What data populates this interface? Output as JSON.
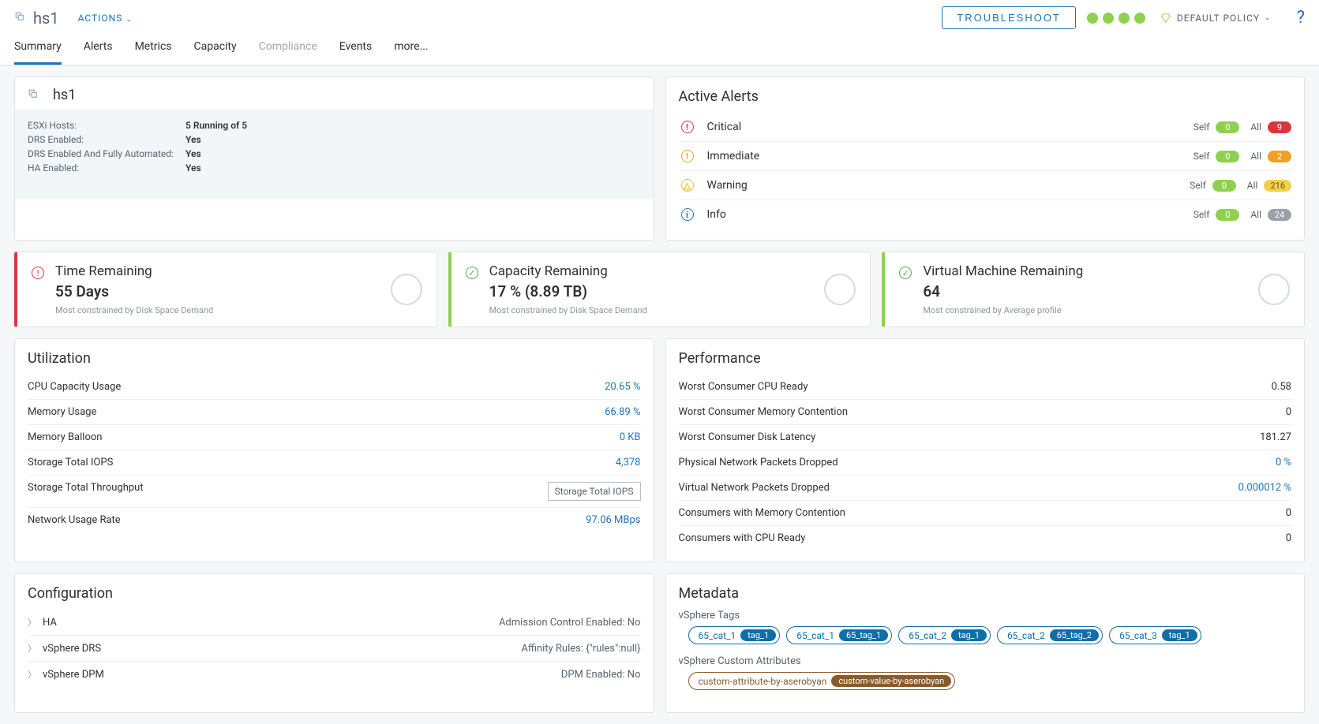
{
  "header": {
    "name": "hs1",
    "actions": "ACTIONS",
    "troubleshoot": "TROUBLESHOOT",
    "badge_colors": [
      "#8fd14f",
      "#8fd14f",
      "#8fd14f",
      "#8fd14f"
    ],
    "policy_label": "DEFAULT POLICY"
  },
  "tabs": [
    "Summary",
    "Alerts",
    "Metrics",
    "Capacity",
    "Compliance",
    "Events",
    "more..."
  ],
  "cluster": {
    "title": "hs1",
    "props": [
      {
        "k": "ESXi Hosts:",
        "v": "5 Running of 5"
      },
      {
        "k": "DRS Enabled:",
        "v": "Yes"
      },
      {
        "k": "DRS Enabled And Fully Automated:",
        "v": "Yes"
      },
      {
        "k": "HA Enabled:",
        "v": "Yes"
      }
    ]
  },
  "alerts": {
    "title": "Active Alerts",
    "rows": [
      {
        "name": "Critical",
        "icon": "!",
        "color": "#d9363f",
        "self": "0",
        "all": "9",
        "all_class": "red"
      },
      {
        "name": "Immediate",
        "icon": "!",
        "color": "#f0a020",
        "self": "0",
        "all": "2",
        "all_class": "org"
      },
      {
        "name": "Warning",
        "icon": "△",
        "color": "#f0c020",
        "self": "0",
        "all": "216",
        "all_class": "yel"
      },
      {
        "name": "Info",
        "icon": "i",
        "color": "#1b75bb",
        "self": "0",
        "all": "24",
        "all_class": "gry"
      }
    ]
  },
  "kpis": [
    {
      "title": "Time Remaining",
      "value": "55 Days",
      "sub": "Most constrained by Disk Space Demand",
      "class": "red",
      "icon_color": "#d9363f"
    },
    {
      "title": "Capacity Remaining",
      "value": "17 % (8.89 TB)",
      "sub": "Most constrained by Disk Space Demand",
      "class": "grn",
      "icon_color": "#4fb04f"
    },
    {
      "title": "Virtual Machine Remaining",
      "value": "64",
      "sub": "Most constrained by Average profile",
      "class": "grn",
      "icon_color": "#4fb04f"
    }
  ],
  "utilization": {
    "title": "Utilization",
    "rows": [
      {
        "k": "CPU Capacity Usage",
        "v": "20.65 %"
      },
      {
        "k": "Memory Usage",
        "v": "66.89 %"
      },
      {
        "k": "Memory Balloon",
        "v": "0 KB"
      },
      {
        "k": "Storage Total IOPS",
        "v": "4,378"
      },
      {
        "k": "Storage Total Throughput",
        "v": "",
        "tooltip": "Storage Total IOPS"
      },
      {
        "k": "Network Usage Rate",
        "v": "97.06 MBps"
      }
    ]
  },
  "performance": {
    "title": "Performance",
    "rows": [
      {
        "k": "Worst Consumer CPU Ready",
        "v": "0.58",
        "plain": true
      },
      {
        "k": "Worst Consumer Memory Contention",
        "v": "0",
        "plain": true
      },
      {
        "k": "Worst Consumer Disk Latency",
        "v": "181.27",
        "plain": true
      },
      {
        "k": "Physical Network Packets Dropped",
        "v": "0 %"
      },
      {
        "k": "Virtual Network Packets Dropped",
        "v": "0.000012 %"
      },
      {
        "k": "Consumers with Memory Contention",
        "v": "0",
        "plain": true
      },
      {
        "k": "Consumers with CPU Ready",
        "v": "0",
        "plain": true
      }
    ]
  },
  "config": {
    "title": "Configuration",
    "rows": [
      {
        "name": "HA",
        "right": "Admission Control Enabled: No"
      },
      {
        "name": "vSphere DRS",
        "right": "Affinity Rules: {\"rules\":null}"
      },
      {
        "name": "vSphere DPM",
        "right": "DPM Enabled: No"
      }
    ]
  },
  "metadata": {
    "title": "Metadata",
    "tags_label": "vSphere Tags",
    "tags": [
      {
        "outer": "65_cat_1",
        "inner": "tag_1"
      },
      {
        "outer": "65_cat_1",
        "inner": "65_tag_1"
      },
      {
        "outer": "65_cat_2",
        "inner": "tag_1"
      },
      {
        "outer": "65_cat_2",
        "inner": "65_tag_2"
      },
      {
        "outer": "65_cat_3",
        "inner": "tag_1"
      }
    ],
    "attrs_label": "vSphere Custom Attributes",
    "attrs": [
      {
        "outer": "custom-attribute-by-aserobyan",
        "inner": "custom-value-by-aserobyan"
      }
    ]
  }
}
